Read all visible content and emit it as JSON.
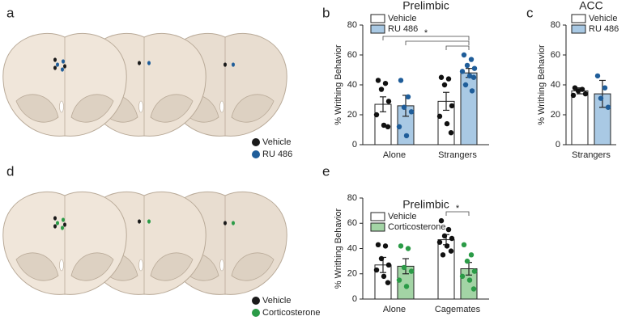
{
  "panel_labels": [
    "a",
    "b",
    "c",
    "d",
    "e"
  ],
  "diagrams": [
    {
      "legend": [
        {
          "name": "Vehicle",
          "color": "#1a1a1a"
        },
        {
          "name": "RU 486",
          "color": "#1f5d99"
        }
      ]
    },
    {
      "legend": [
        {
          "name": "Vehicle",
          "color": "#1a1a1a"
        },
        {
          "name": "Corticosterone",
          "color": "#2b9b47"
        }
      ]
    }
  ],
  "chart_data": [
    {
      "type": "bar",
      "title": "Prelimbic",
      "ylabel": "% Writhing Behavior",
      "categories": [
        "Alone",
        "Strangers"
      ],
      "ylim": [
        0,
        80
      ],
      "yticks": [
        0,
        20,
        40,
        60,
        80
      ],
      "series": [
        {
          "name": "Vehicle",
          "color": "#ffffff",
          "point_color": "#111111",
          "values": [
            27,
            29
          ],
          "errors": [
            5,
            6
          ],
          "points": [
            [
              43,
              41,
              37,
              29,
              20,
              13,
              12
            ],
            [
              45,
              44,
              40,
              26,
              19,
              14,
              8
            ]
          ]
        },
        {
          "name": "RU 486",
          "color": "#a9c9e4",
          "point_color": "#1f5d99",
          "values": [
            26,
            48
          ],
          "errors": [
            7,
            3
          ],
          "points": [
            [
              43,
              32,
              25,
              22,
              12,
              6
            ],
            [
              60,
              57,
              53,
              51,
              49,
              46,
              45,
              40,
              36
            ]
          ]
        }
      ],
      "annotations": [
        "*"
      ]
    },
    {
      "type": "bar",
      "title": "ACC",
      "ylabel": "% Writhing Behavior",
      "categories": [
        "Strangers"
      ],
      "ylim": [
        0,
        80
      ],
      "yticks": [
        0,
        20,
        40,
        60,
        80
      ],
      "series": [
        {
          "name": "Vehicle",
          "color": "#ffffff",
          "point_color": "#111111",
          "values": [
            36
          ],
          "errors": [
            2
          ],
          "points": [
            [
              38,
              37,
              36,
              34,
              33
            ]
          ]
        },
        {
          "name": "RU 486",
          "color": "#a9c9e4",
          "point_color": "#1f5d99",
          "values": [
            34
          ],
          "errors": [
            9
          ],
          "points": [
            [
              46,
              38,
              31,
              25
            ]
          ]
        }
      ]
    },
    {
      "type": "bar",
      "title": "Prelimbic",
      "ylabel": "% Writhing Behavior",
      "categories": [
        "Alone",
        "Cagemates"
      ],
      "ylim": [
        0,
        80
      ],
      "yticks": [
        0,
        20,
        40,
        60,
        80
      ],
      "series": [
        {
          "name": "Vehicle",
          "color": "#ffffff",
          "point_color": "#111111",
          "values": [
            27,
            47
          ],
          "errors": [
            6,
            4
          ],
          "points": [
            [
              43,
              42,
              32,
              27,
              23,
              18,
              13
            ],
            [
              62,
              55,
              50,
              48,
              45,
              42,
              38,
              35
            ]
          ]
        },
        {
          "name": "Corticosterone",
          "color": "#a3d4a5",
          "point_color": "#2b9b47",
          "values": [
            26,
            24
          ],
          "errors": [
            6,
            5
          ],
          "points": [
            [
              42,
              40,
              25,
              22,
              15,
              10
            ],
            [
              43,
              35,
              30,
              22,
              18,
              15,
              8
            ]
          ]
        }
      ],
      "annotations": [
        "*"
      ]
    }
  ]
}
